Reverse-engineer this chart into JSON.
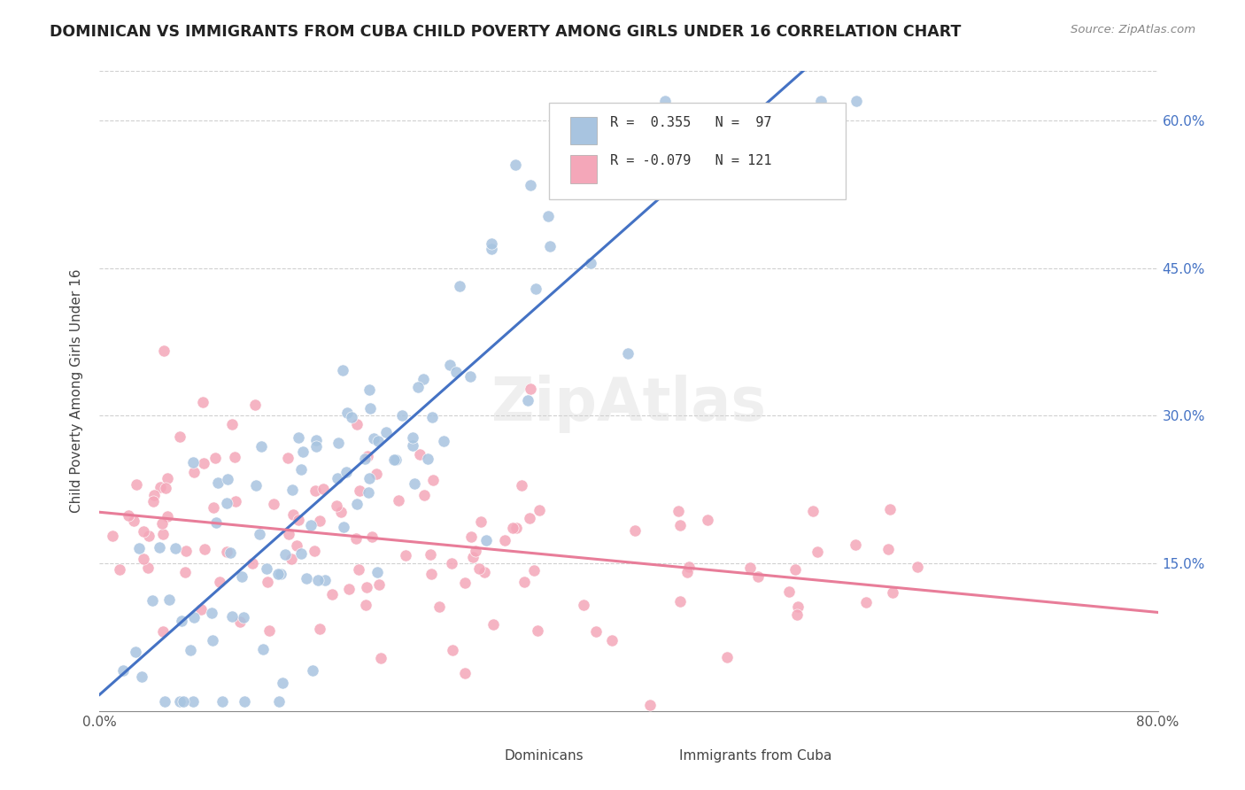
{
  "title": "DOMINICAN VS IMMIGRANTS FROM CUBA CHILD POVERTY AMONG GIRLS UNDER 16 CORRELATION CHART",
  "source": "Source: ZipAtlas.com",
  "ylabel": "Child Poverty Among Girls Under 16",
  "xlabel_ticks": [
    "0.0%",
    "80.0%"
  ],
  "ytick_labels": [
    "15.0%",
    "30.0%",
    "45.0%",
    "60.0%"
  ],
  "dominican_R": 0.355,
  "dominican_N": 97,
  "cuba_R": -0.079,
  "cuba_N": 121,
  "dominican_color": "#a8c4e0",
  "cuba_color": "#f4a7b9",
  "dominican_line_color": "#4472c4",
  "cuba_line_color": "#e87d99",
  "trendline_extension_color": "#b0c8d8",
  "background_color": "#ffffff",
  "grid_color": "#d0d0d0",
  "title_color": "#222222",
  "right_axis_color": "#4472c4",
  "watermark_text": "ZipAtlas",
  "xmin": 0.0,
  "xmax": 0.8,
  "ymin": 0.0,
  "ymax": 0.65,
  "seed": 42
}
